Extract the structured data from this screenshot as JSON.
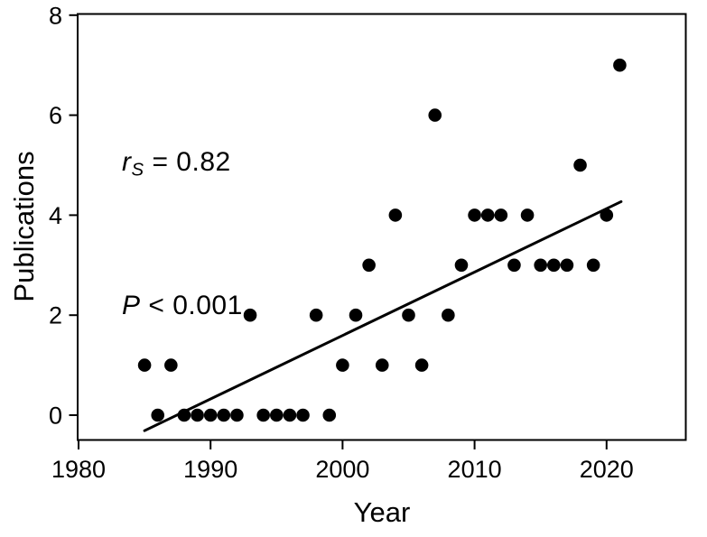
{
  "figure": {
    "background": "#ffffff",
    "foreground": "#000000"
  },
  "chart_data": {
    "type": "scatter",
    "title": "",
    "xlabel": "Year",
    "ylabel": "Publications",
    "xlim": [
      1980,
      2026
    ],
    "ylim": [
      -0.5,
      8.05
    ],
    "xticks": [
      1980,
      1990,
      2000,
      2010,
      2020
    ],
    "yticks": [
      0,
      2,
      4,
      6,
      8
    ],
    "grid": false,
    "legend": "none",
    "marker_color": "#000000",
    "line_color": "#000000",
    "points": [
      [
        1985,
        1
      ],
      [
        1986,
        0
      ],
      [
        1987,
        1
      ],
      [
        1988,
        0
      ],
      [
        1989,
        0
      ],
      [
        1990,
        0
      ],
      [
        1991,
        0
      ],
      [
        1992,
        0
      ],
      [
        1993,
        2
      ],
      [
        1994,
        0
      ],
      [
        1995,
        0
      ],
      [
        1996,
        0
      ],
      [
        1997,
        0
      ],
      [
        1998,
        2
      ],
      [
        1999,
        0
      ],
      [
        2000,
        1
      ],
      [
        2001,
        2
      ],
      [
        2002,
        3
      ],
      [
        2003,
        1
      ],
      [
        2004,
        4
      ],
      [
        2005,
        2
      ],
      [
        2006,
        1
      ],
      [
        2007,
        6
      ],
      [
        2008,
        2
      ],
      [
        2009,
        3
      ],
      [
        2010,
        4
      ],
      [
        2011,
        4
      ],
      [
        2012,
        4
      ],
      [
        2013,
        3
      ],
      [
        2014,
        4
      ],
      [
        2015,
        3
      ],
      [
        2016,
        3
      ],
      [
        2017,
        3
      ],
      [
        2018,
        5
      ],
      [
        2019,
        3
      ],
      [
        2020,
        4
      ],
      [
        2021,
        7
      ]
    ],
    "trend_line": {
      "x1": 1985,
      "y1": -0.31,
      "x2": 2021.1,
      "y2": 4.27
    },
    "annotation": {
      "r_symbol": "r",
      "r_subscript": "S",
      "r_rest": " = 0.82",
      "p_symbol": "P",
      "p_rest": " < 0.001"
    }
  }
}
